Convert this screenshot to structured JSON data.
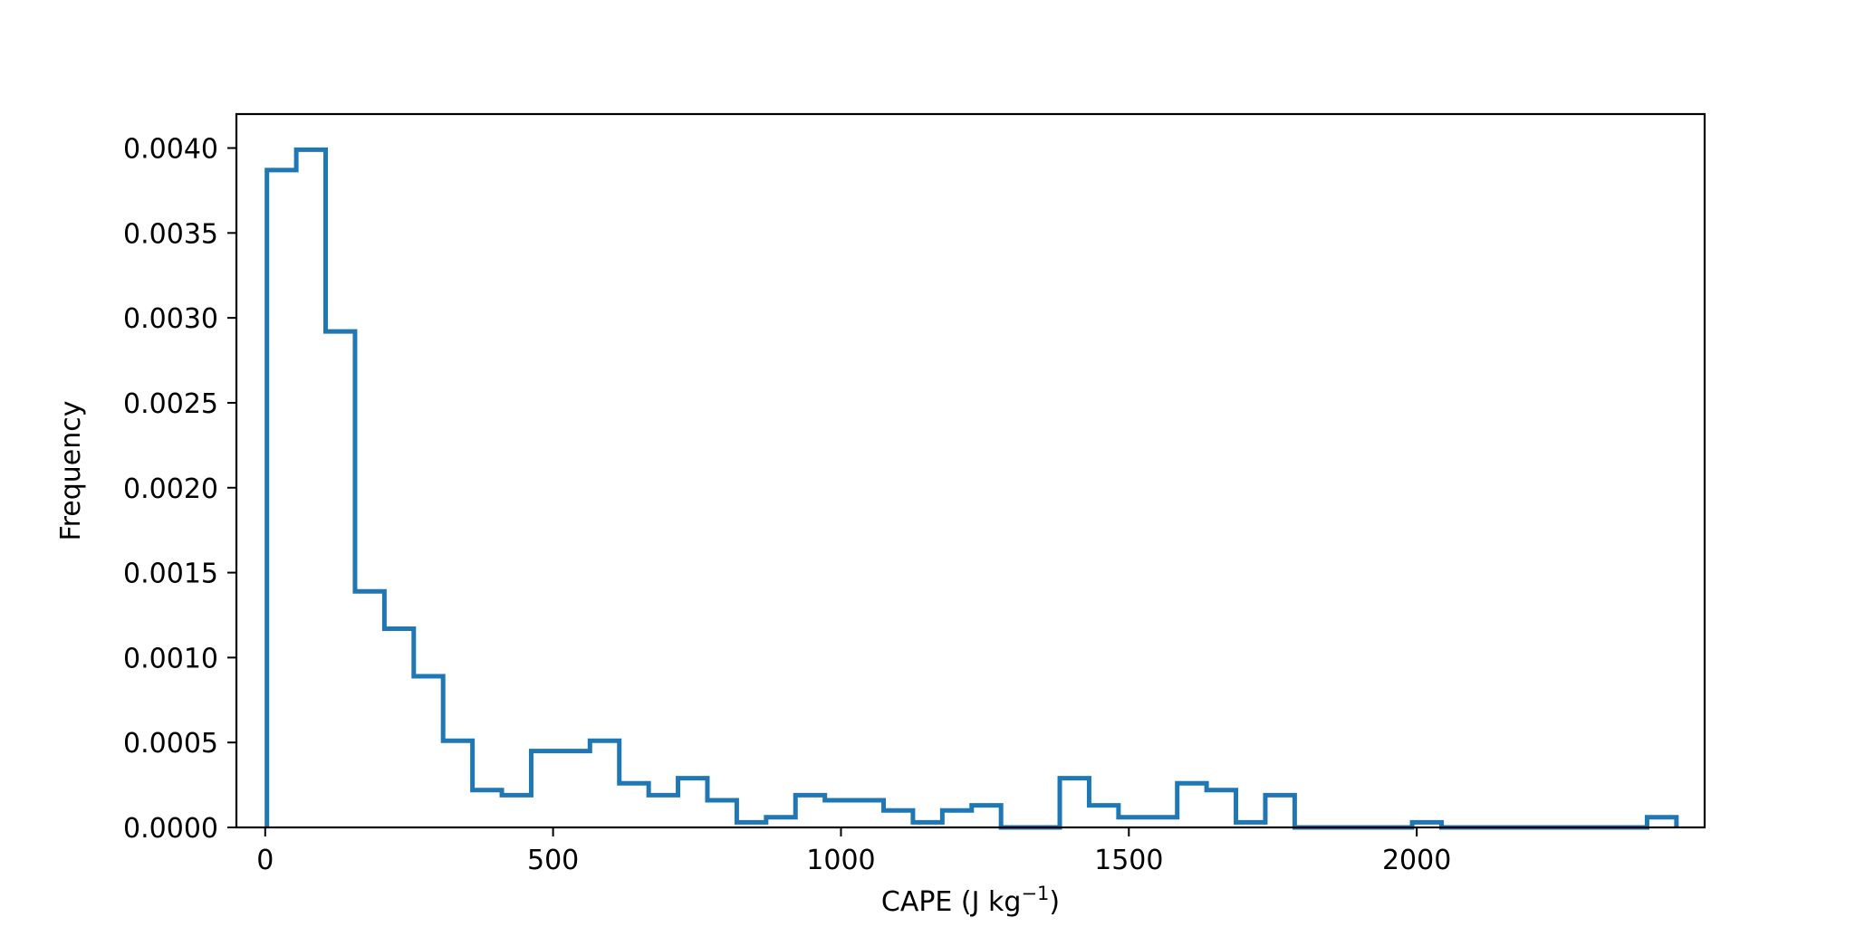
{
  "chart_data": {
    "type": "histogram",
    "xlabel": "CAPE (J kg",
    "xlabel_exponent": "−1",
    "xlabel_suffix": ")",
    "ylabel": "Frequency",
    "xlim": [
      -50,
      2500
    ],
    "ylim": [
      0,
      0.0042
    ],
    "x_ticks": [
      0,
      500,
      1000,
      1500,
      2000
    ],
    "x_tick_labels": [
      "0",
      "500",
      "1000",
      "1500",
      "2000"
    ],
    "y_ticks": [
      0,
      0.0005,
      0.001,
      0.0015,
      0.002,
      0.0025,
      0.003,
      0.0035,
      0.004
    ],
    "y_tick_labels": [
      "0.0000",
      "0.0005",
      "0.0010",
      "0.0015",
      "0.0020",
      "0.0025",
      "0.0030",
      "0.0035",
      "0.0040"
    ],
    "bin_width": 51,
    "bin_start": 3,
    "values": [
      0.00387,
      0.00399,
      0.00292,
      0.00139,
      0.00117,
      0.00089,
      0.00051,
      0.00022,
      0.00019,
      0.00045,
      0.00045,
      0.00051,
      0.00026,
      0.00019,
      0.00029,
      0.00016,
      3e-05,
      6e-05,
      0.00019,
      0.00016,
      0.00016,
      0.0001,
      3e-05,
      0.0001,
      0.00013,
      0.0,
      0.0,
      0.00029,
      0.00013,
      6e-05,
      6e-05,
      0.00026,
      0.00022,
      3e-05,
      0.00019,
      0.0,
      0.0,
      0.0,
      0.0,
      3e-05,
      0.0,
      0.0,
      0.0,
      0.0,
      0.0,
      0.0,
      0.0,
      6e-05
    ],
    "grid": false,
    "legend": "none",
    "line_color": "#1f77b4"
  }
}
